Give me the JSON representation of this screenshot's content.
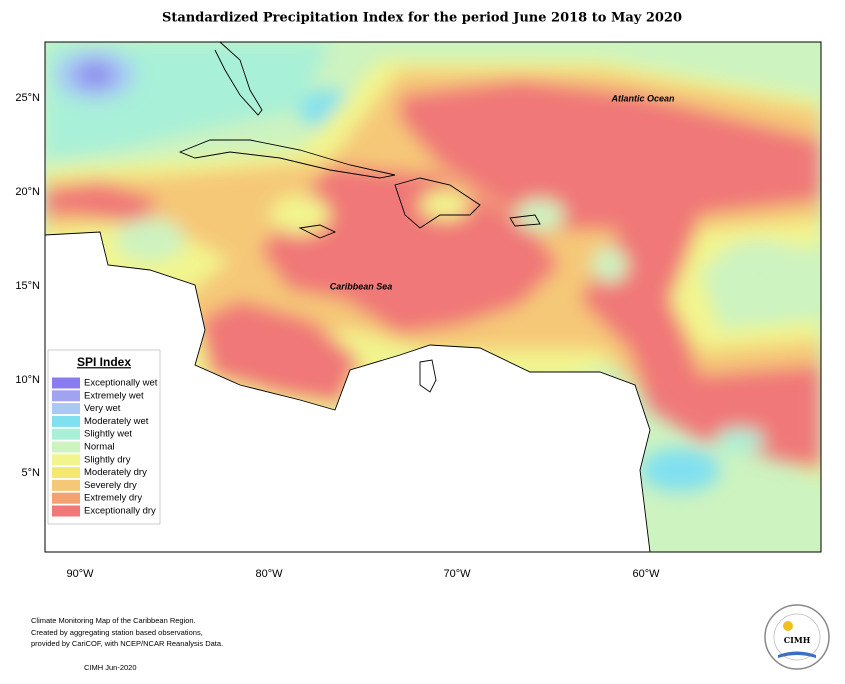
{
  "header": {
    "title": "Standardized Precipitation Index for the period June 2018 to May 2020"
  },
  "map": {
    "lat_labels": [
      "25°N",
      "20°N",
      "15°N",
      "10°N",
      "5°N"
    ],
    "lon_labels": [
      "90°W",
      "80°W",
      "70°W",
      "60°W"
    ],
    "annotations": [
      "Atlantic Ocean",
      "Caribbean Sea"
    ]
  },
  "legend": {
    "title": "SPI Index",
    "items": [
      {
        "label": "Exceptionally wet",
        "color": "#8a7cf0"
      },
      {
        "label": "Extremely wet",
        "color": "#a0a4f0"
      },
      {
        "label": "Very wet",
        "color": "#a8c8f5"
      },
      {
        "label": "Moderately wet",
        "color": "#80e0f0"
      },
      {
        "label": "Slightly wet",
        "color": "#a8f0d8"
      },
      {
        "label": "Normal",
        "color": "#cdf3c0"
      },
      {
        "label": "Slightly dry",
        "color": "#f2f58e"
      },
      {
        "label": "Moderately dry",
        "color": "#f5e870"
      },
      {
        "label": "Severely dry",
        "color": "#f5c878"
      },
      {
        "label": "Extremely dry",
        "color": "#f5a070"
      },
      {
        "label": "Exceptionally dry",
        "color": "#f07878"
      }
    ]
  },
  "footer": {
    "lines": [
      "Climate Monitoring Map of the Caribbean Region.",
      "Created by aggregating station based observations,",
      "provided by CariCOF, with NCEP/NCAR Reanalysis Data.",
      "CIMH Jun-2020"
    ]
  },
  "logo": {
    "text": "CIMH"
  }
}
